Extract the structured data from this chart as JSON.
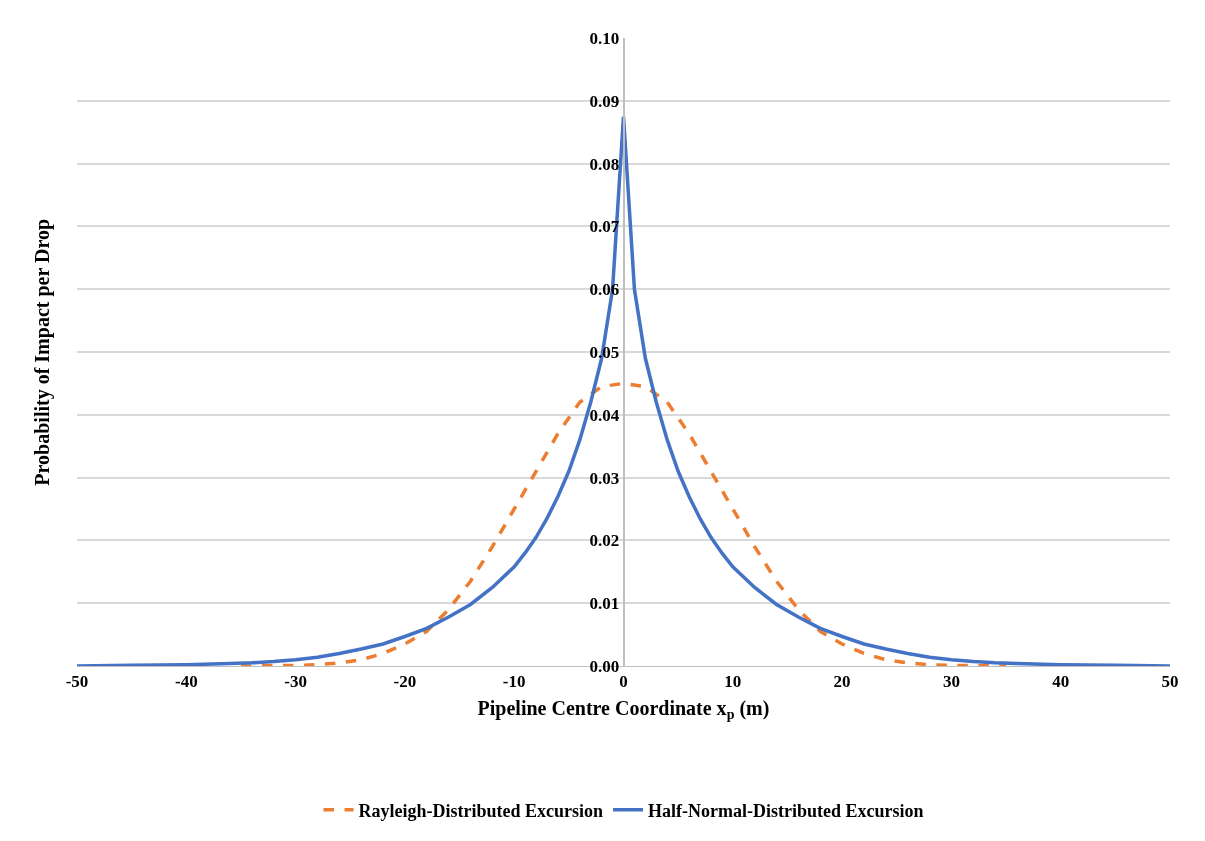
{
  "chart_data": {
    "type": "line",
    "xlabel": "Pipeline Centre Coordinate x$_{p}$ (m)",
    "ylabel": "Probability of Impact per Drop",
    "series": [
      {
        "name": "Rayleigh-Distributed Excursion",
        "color": "#ed7d31",
        "line_style": "dashed",
        "x": [
          -35,
          -30,
          -28,
          -26,
          -24,
          -22,
          -20,
          -18,
          -16,
          -14,
          -12,
          -10,
          -8,
          -6,
          -4,
          -2,
          0,
          2,
          4,
          6,
          8,
          10,
          12,
          14,
          16,
          18,
          20,
          22,
          24,
          26,
          28,
          30,
          35
        ],
        "values": [
          0,
          0.0001,
          0.0002,
          0.0005,
          0.001,
          0.002,
          0.0035,
          0.0055,
          0.009,
          0.0135,
          0.019,
          0.025,
          0.031,
          0.037,
          0.042,
          0.0445,
          0.045,
          0.0445,
          0.042,
          0.037,
          0.031,
          0.025,
          0.019,
          0.0135,
          0.009,
          0.0055,
          0.0035,
          0.002,
          0.001,
          0.0005,
          0.0002,
          0.0001,
          0
        ]
      },
      {
        "name": "Half-Normal-Distributed Excursion",
        "color": "#4472c4",
        "line_style": "solid",
        "x": [
          -50,
          -45,
          -40,
          -36,
          -34,
          -32,
          -30,
          -28,
          -26,
          -24,
          -22,
          -20,
          -18,
          -16,
          -14,
          -12,
          -10,
          -9,
          -8,
          -7,
          -6,
          -5,
          -4,
          -3,
          -2,
          -1,
          0,
          1,
          2,
          3,
          4,
          5,
          6,
          7,
          8,
          9,
          10,
          12,
          14,
          16,
          18,
          20,
          22,
          24,
          26,
          28,
          30,
          32,
          34,
          36,
          40,
          45,
          50
        ],
        "values": [
          0,
          0.0001,
          0.0002,
          0.0004,
          0.0005,
          0.0007,
          0.001,
          0.0014,
          0.002,
          0.0027,
          0.0035,
          0.0047,
          0.006,
          0.0078,
          0.0098,
          0.0125,
          0.0158,
          0.018,
          0.0205,
          0.0235,
          0.027,
          0.031,
          0.036,
          0.042,
          0.049,
          0.06,
          0.0875,
          0.06,
          0.049,
          0.042,
          0.036,
          0.031,
          0.027,
          0.0235,
          0.0205,
          0.018,
          0.0158,
          0.0125,
          0.0098,
          0.0078,
          0.006,
          0.0047,
          0.0035,
          0.0027,
          0.002,
          0.0014,
          0.001,
          0.0007,
          0.0005,
          0.0004,
          0.0002,
          0.0001,
          0
        ]
      }
    ],
    "xlim": [
      -50,
      50
    ],
    "xticks": [
      -50,
      -40,
      -30,
      -20,
      -10,
      0,
      10,
      20,
      30,
      40,
      50
    ],
    "ylim": [
      0,
      0.1
    ],
    "yticks": [
      {
        "value": 0,
        "label": "0.00"
      },
      {
        "value": 0.01,
        "label": "0.01"
      },
      {
        "value": 0.02,
        "label": "0.02"
      },
      {
        "value": 0.03,
        "label": "0.03"
      },
      {
        "value": 0.04,
        "label": "0.04"
      },
      {
        "value": 0.05,
        "label": "0.05"
      },
      {
        "value": 0.06,
        "label": "0.06"
      },
      {
        "value": 0.07,
        "label": "0.07"
      },
      {
        "value": 0.08,
        "label": "0.08"
      },
      {
        "value": 0.09,
        "label": "0.09"
      },
      {
        "value": 0.1,
        "label": "0.10"
      }
    ],
    "grid": "y",
    "legend": "bottom",
    "marker": "none"
  }
}
